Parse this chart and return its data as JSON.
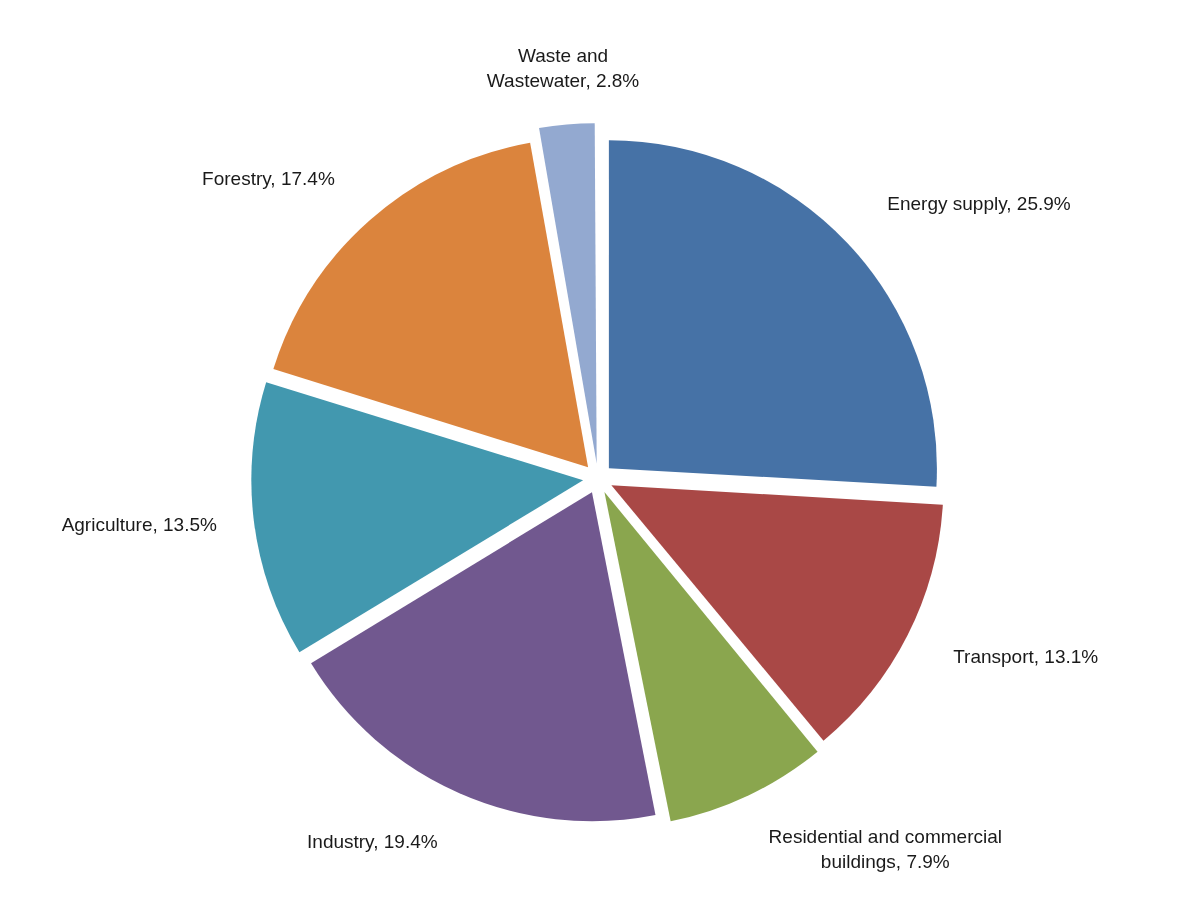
{
  "chart_data": {
    "type": "pie",
    "categories": [
      "Energy supply",
      "Transport",
      "Residential and commercial buildings",
      "Industry",
      "Agriculture",
      "Forestry",
      "Waste and Wastewater"
    ],
    "values": [
      25.9,
      13.1,
      7.9,
      19.4,
      13.5,
      17.4,
      2.8
    ],
    "value_labels": [
      "25.9%",
      "13.1%",
      "7.9%",
      "19.4%",
      "13.5%",
      "17.4%",
      "2.8%"
    ],
    "colors": [
      "#4672a6",
      "#a94846",
      "#8aa64e",
      "#71588f",
      "#4298af",
      "#db843d",
      "#93a9d0"
    ]
  }
}
